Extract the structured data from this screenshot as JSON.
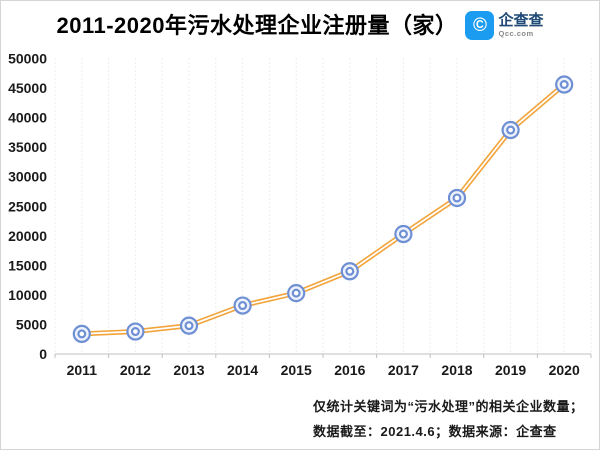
{
  "header": {
    "title": "2011-2020年污水处理企业注册量（家）",
    "logo": {
      "icon_glyph": "©",
      "icon_color": "#1B9CF0",
      "name": "企查查",
      "name_color": "#1E4976",
      "domain": "Qcc.com",
      "domain_color": "#8a8a8a"
    }
  },
  "chart_data": {
    "type": "line",
    "title": "2011-2020年污水处理企业注册量（家）",
    "categories": [
      "2011",
      "2012",
      "2013",
      "2014",
      "2015",
      "2016",
      "2017",
      "2018",
      "2019",
      "2020"
    ],
    "series": [
      {
        "name": "污水处理企业注册量",
        "values": [
          3400,
          3800,
          4800,
          8200,
          10300,
          14000,
          20300,
          26400,
          37900,
          45600
        ]
      }
    ],
    "ylim": [
      0,
      50000
    ],
    "y_ticks": [
      0,
      5000,
      10000,
      15000,
      20000,
      25000,
      30000,
      35000,
      40000,
      45000,
      50000
    ],
    "xlabel": "",
    "ylabel": "",
    "grid": "vertical-dotted",
    "legend": "none",
    "colors": {
      "line": "#F2A43B",
      "line_core": "#FFFFFF",
      "marker_stroke": "#6E8FD4",
      "marker_fill": "#EDF2FB",
      "marker_center": "#FFFFFF",
      "grid": "#DCDCDC",
      "axis": "#C0C0C0",
      "tick_label": "#1A1A1A"
    }
  },
  "footer": {
    "line1": "仅统计关键词为“污水处理”的相关企业数量；",
    "line2": "数据截至：2021.4.6；数据来源：企查查"
  }
}
